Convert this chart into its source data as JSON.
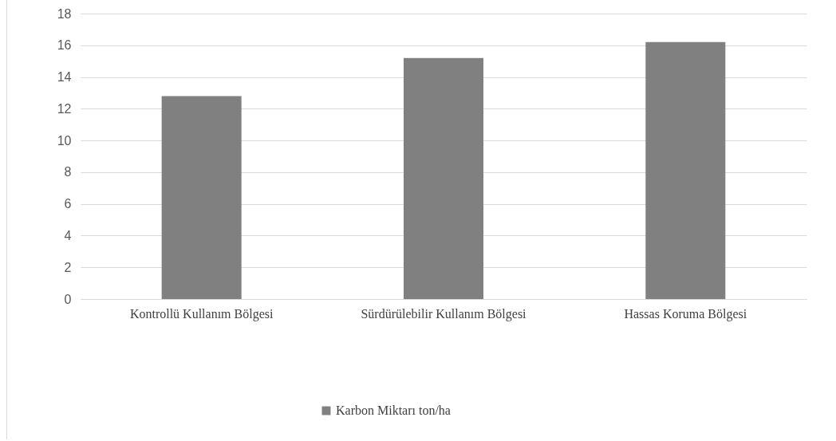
{
  "chart_data": {
    "type": "bar",
    "categories": [
      "Kontrollü Kullanım Bölgesi",
      "Sürdürülebilir Kullanım Bölgesi",
      "Hassas Koruma Bölgesi"
    ],
    "series": [
      {
        "name": "Karbon Miktarı ton/ha",
        "color": "#808080",
        "values": [
          12.8,
          15.2,
          16.2
        ]
      }
    ],
    "ylim": [
      0,
      18
    ],
    "yticks": [
      0,
      2,
      4,
      6,
      8,
      10,
      12,
      14,
      16,
      18
    ],
    "grid": "y",
    "legend": "bottom"
  }
}
